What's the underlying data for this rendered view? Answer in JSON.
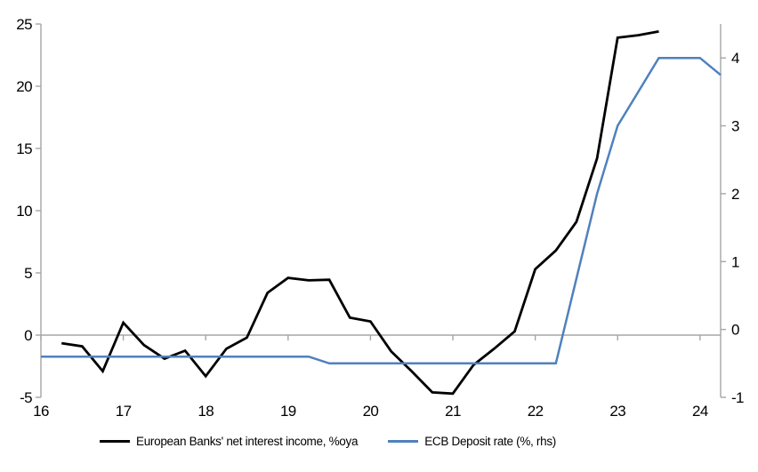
{
  "chart_data": {
    "type": "line",
    "title": "",
    "xlabel": "",
    "ylabel_left": "",
    "ylabel_right": "",
    "legend_position": "bottom",
    "grid": "zero-line-only",
    "x_axis": {
      "min": 16,
      "max": 24.25,
      "ticks": [
        16,
        17,
        18,
        19,
        20,
        21,
        22,
        23,
        24
      ]
    },
    "y_left": {
      "min": -5,
      "max": 25,
      "ticks": [
        -5,
        0,
        5,
        10,
        15,
        20,
        25
      ]
    },
    "y_right": {
      "min": -1,
      "max": 4.5,
      "ticks": [
        -1,
        0,
        1,
        2,
        3,
        4
      ]
    },
    "series": [
      {
        "name": "European Banks' net interest income, %oya",
        "axis": "left",
        "color": "#000000",
        "x": [
          16.25,
          16.5,
          16.75,
          17.0,
          17.25,
          17.5,
          17.75,
          18.0,
          18.25,
          18.5,
          18.75,
          19.0,
          19.25,
          19.5,
          19.75,
          20.0,
          20.25,
          20.5,
          20.75,
          21.0,
          21.25,
          21.5,
          21.75,
          22.0,
          22.25,
          22.5,
          22.75,
          23.0,
          23.25,
          23.5
        ],
        "values": [
          -0.65,
          -0.9,
          -2.9,
          1.0,
          -0.8,
          -1.9,
          -1.25,
          -3.3,
          -1.1,
          -0.2,
          3.4,
          4.6,
          4.4,
          4.45,
          1.4,
          1.1,
          -1.3,
          -2.9,
          -4.6,
          -4.7,
          -2.4,
          -1.1,
          0.3,
          5.3,
          6.8,
          9.1,
          14.2,
          23.9,
          24.1,
          24.4
        ]
      },
      {
        "name": "ECB Deposit rate (%, rhs)",
        "axis": "right",
        "color": "#4f81bd",
        "x": [
          16.0,
          19.25,
          19.5,
          22.25,
          22.5,
          22.75,
          23.0,
          23.25,
          23.5,
          23.75,
          24.0,
          24.25
        ],
        "values": [
          -0.4,
          -0.4,
          -0.5,
          -0.5,
          0.75,
          2.0,
          3.0,
          3.5,
          4.0,
          4.0,
          4.0,
          3.75
        ]
      }
    ],
    "colors": {
      "axis": "#a6a6a6",
      "zero_line": "#a6a6a6",
      "text": "#000000",
      "background": "#ffffff"
    }
  }
}
